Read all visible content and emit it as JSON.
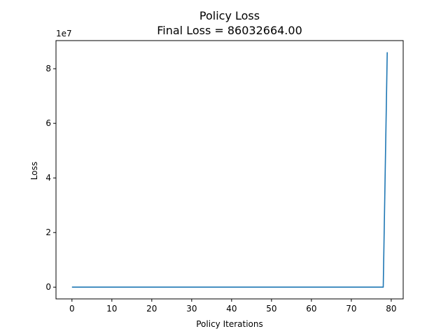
{
  "chart_data": {
    "type": "line",
    "title": "Policy Loss",
    "subtitle": "Final Loss = 86032664.00",
    "xlabel": "Policy Iterations",
    "ylabel": "Loss",
    "y_offset_label": "1e7",
    "xlim": [
      -4,
      83
    ],
    "ylim": [
      -0.43,
      9.03
    ],
    "y_scale_note": "y values in units of 1e7",
    "x_ticks": [
      0,
      10,
      20,
      30,
      40,
      50,
      60,
      70,
      80
    ],
    "x_tick_labels": [
      "0",
      "10",
      "20",
      "30",
      "40",
      "50",
      "60",
      "70",
      "80"
    ],
    "y_ticks": [
      0,
      2,
      4,
      6,
      8
    ],
    "y_tick_labels": [
      "0",
      "2",
      "4",
      "6",
      "8"
    ],
    "grid": false,
    "series": [
      {
        "color": "#1f77b4",
        "x": [
          0,
          10,
          20,
          30,
          40,
          50,
          60,
          70,
          78,
          79
        ],
        "y": [
          0,
          0,
          0,
          0,
          0,
          0,
          0,
          0,
          0,
          8.6032664
        ]
      }
    ]
  }
}
